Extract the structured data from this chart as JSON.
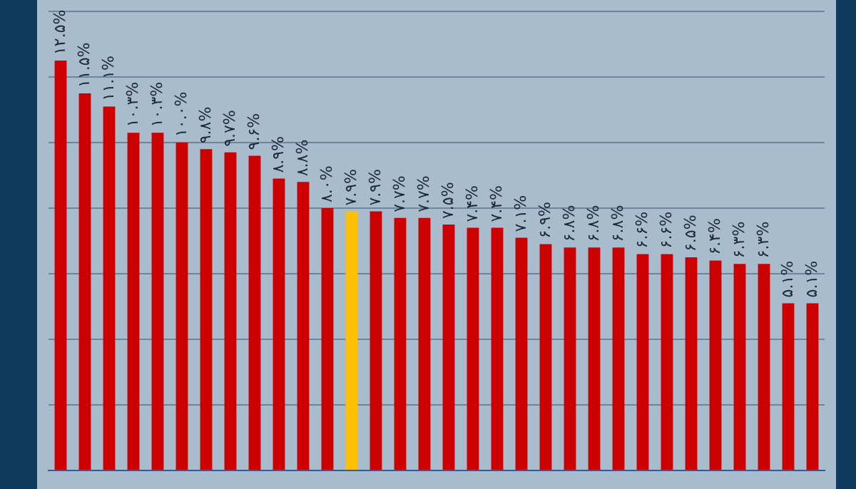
{
  "chart_data": {
    "type": "bar",
    "categories": [
      null,
      null,
      null,
      null,
      null,
      null,
      null,
      null,
      null,
      null,
      null,
      null,
      null,
      null,
      null,
      null,
      null,
      null,
      null,
      null,
      null,
      null,
      null,
      null,
      null,
      null,
      null,
      null,
      null,
      null,
      null,
      null
    ],
    "values": [
      12.5,
      11.5,
      11.1,
      10.3,
      10.3,
      10.0,
      9.8,
      9.7,
      9.6,
      8.9,
      8.8,
      8.0,
      7.9,
      7.9,
      7.7,
      7.7,
      7.5,
      7.4,
      7.4,
      7.1,
      6.9,
      6.8,
      6.8,
      6.8,
      6.6,
      6.6,
      6.5,
      6.4,
      6.3,
      6.3,
      5.1,
      5.1
    ],
    "colors": [
      "#cc0000",
      "#cc0000",
      "#cc0000",
      "#cc0000",
      "#cc0000",
      "#cc0000",
      "#cc0000",
      "#cc0000",
      "#cc0000",
      "#cc0000",
      "#cc0000",
      "#cc0000",
      "#ffc000",
      "#cc0000",
      "#cc0000",
      "#cc0000",
      "#cc0000",
      "#cc0000",
      "#cc0000",
      "#cc0000",
      "#cc0000",
      "#cc0000",
      "#cc0000",
      "#cc0000",
      "#cc0000",
      "#cc0000",
      "#cc0000",
      "#cc0000",
      "#cc0000",
      "#cc0000",
      "#cc0000",
      "#cc0000"
    ],
    "value_labels": [
      "۱۲.۵%",
      "۱۱.۵%",
      "۱۱.۱%",
      "۱۰.۳%",
      "۱۰.۳%",
      "۱۰.۰%",
      "۹.۸%",
      "۹.۷%",
      "۹.۶%",
      "۸.۹%",
      "۸.۸%",
      "۸.۰%",
      "۷.۹%",
      "۷.۹%",
      "۷.۷%",
      "۷.۷%",
      "۷.۵%",
      "۷.۴%",
      "۷.۴%",
      "۷.۱%",
      "۶.۹%",
      "۶.۸%",
      "۶.۸%",
      "۶.۸%",
      "۶.۶%",
      "۶.۶%",
      "۶.۵%",
      "۶.۴%",
      "۶.۳%",
      "۶.۳%",
      "۵.۱%",
      "۵.۱%"
    ],
    "ylim": [
      0,
      14
    ],
    "yticks": [
      {
        "value": 0,
        "label": null
      },
      {
        "value": 2,
        "label": null
      },
      {
        "value": 4,
        "label": null
      },
      {
        "value": 6,
        "label": null
      },
      {
        "value": 8,
        "label": null
      },
      {
        "value": 10,
        "label": null
      },
      {
        "value": 12,
        "label": null
      },
      {
        "value": 14,
        "label": null
      }
    ],
    "grid": "y",
    "tick_labels": false,
    "legend": false
  }
}
